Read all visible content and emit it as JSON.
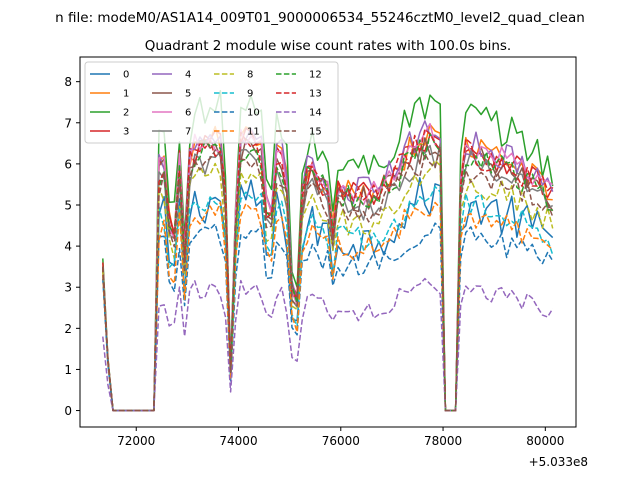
{
  "chart_data": {
    "type": "line",
    "suptitle": "n file: modeM0/AS1A14_009T01_9000006534_55246cztM0_level2_quad_clean",
    "title": "Quadrant 2 module wise count rates with 100.0s bins.",
    "xlabel": "",
    "ylabel": "",
    "x_offset_label": "+5.033e8",
    "xlim": [
      70900,
      80600
    ],
    "ylim": [
      -0.4,
      8.6
    ],
    "xticks": [
      72000,
      74000,
      76000,
      78000,
      80000
    ],
    "xtick_labels": [
      "72000",
      "74000",
      "76000",
      "78000",
      "80000"
    ],
    "yticks": [
      0,
      1,
      2,
      3,
      4,
      5,
      6,
      7,
      8
    ],
    "ytick_labels": [
      "0",
      "1",
      "2",
      "3",
      "4",
      "5",
      "6",
      "7",
      "8"
    ],
    "grid": false,
    "legend_position": "top-left",
    "legend_columns": 4,
    "x_start": 71345,
    "x_step": 100,
    "n_points": 89,
    "note": "x values are offsets from 5.033e8 s; points run from x_start in steps of x_step; gaps near 71600-72300 and 78000-78300 are near-zero counts",
    "series": [
      {
        "name": "0",
        "color": "#1f77b4",
        "dash": "solid",
        "level": 4.6,
        "start": 3.5,
        "amp": 0.55
      },
      {
        "name": "1",
        "color": "#ff7f0e",
        "dash": "solid",
        "level": 5.9,
        "start": 3.5,
        "amp": 0.35
      },
      {
        "name": "2",
        "color": "#2ca02c",
        "dash": "solid",
        "level": 6.6,
        "start": 3.7,
        "amp": 0.45
      },
      {
        "name": "3",
        "color": "#d62728",
        "dash": "solid",
        "level": 5.9,
        "start": 3.6,
        "amp": 0.35
      },
      {
        "name": "4",
        "color": "#9467bd",
        "dash": "solid",
        "level": 6.0,
        "start": 3.5,
        "amp": 0.35
      },
      {
        "name": "5",
        "color": "#8c564b",
        "dash": "solid",
        "level": 5.7,
        "start": 3.5,
        "amp": 0.35
      },
      {
        "name": "6",
        "color": "#e377c2",
        "dash": "solid",
        "level": 5.9,
        "start": 3.5,
        "amp": 0.3
      },
      {
        "name": "7",
        "color": "#7f7f7f",
        "dash": "solid",
        "level": 5.5,
        "start": 3.5,
        "amp": 0.35
      },
      {
        "name": "8",
        "color": "#bcbd22",
        "dash": "dashed",
        "level": 5.1,
        "start": 3.4,
        "amp": 0.35
      },
      {
        "name": "9",
        "color": "#17becf",
        "dash": "dashed",
        "level": 4.6,
        "start": 3.3,
        "amp": 0.35
      },
      {
        "name": "10",
        "color": "#1f77b4",
        "dash": "dashed",
        "level": 3.9,
        "start": 3.2,
        "amp": 0.3
      },
      {
        "name": "11",
        "color": "#ff7f0e",
        "dash": "dashed",
        "level": 4.4,
        "start": 3.3,
        "amp": 0.3
      },
      {
        "name": "12",
        "color": "#2ca02c",
        "dash": "dashed",
        "level": 5.7,
        "start": 3.5,
        "amp": 0.35
      },
      {
        "name": "13",
        "color": "#d62728",
        "dash": "dashed",
        "level": 5.8,
        "start": 3.5,
        "amp": 0.35
      },
      {
        "name": "14",
        "color": "#9467bd",
        "dash": "dashed",
        "level": 2.7,
        "start": 1.8,
        "amp": 0.25
      },
      {
        "name": "15",
        "color": "#8c564b",
        "dash": "dashed",
        "level": 5.4,
        "start": 3.5,
        "amp": 0.35
      }
    ]
  }
}
